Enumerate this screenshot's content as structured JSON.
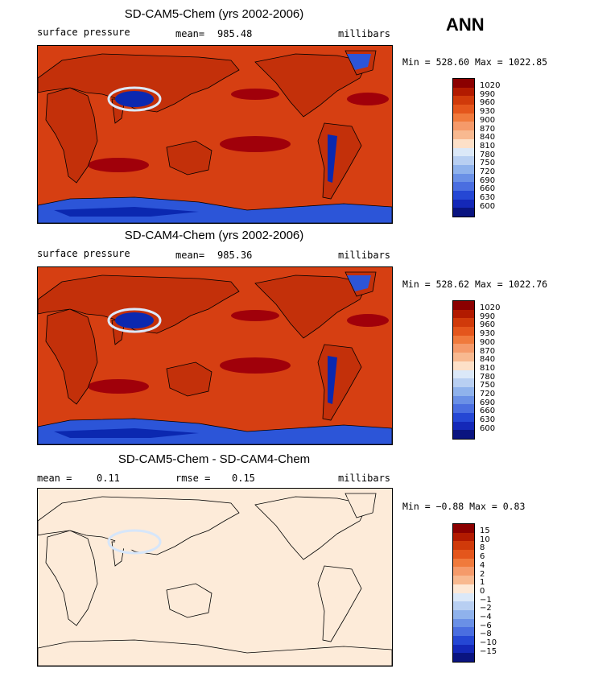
{
  "season": "ANN",
  "panels": [
    {
      "title": "SD-CAM5-Chem (yrs 2002-2006)",
      "left_label": "surface pressure",
      "mean_label": "mean=",
      "mean_value": "985.48",
      "units": "millibars",
      "min_label": "Min =",
      "min_value": "528.60",
      "max_label": "Max =",
      "max_value": "1022.85",
      "colorbar_labels": [
        "1020",
        "990",
        "960",
        "930",
        "900",
        "870",
        "840",
        "810",
        "780",
        "750",
        "720",
        "690",
        "660",
        "630",
        "600"
      ],
      "colorbar_colors": [
        "#8b0000",
        "#b21a00",
        "#d03a0a",
        "#e4561c",
        "#f07a3c",
        "#f59a6a",
        "#f8b990",
        "#fde0c8",
        "#dbe8f8",
        "#b8cff2",
        "#8fb2ec",
        "#6a90e6",
        "#4a6ee0",
        "#2547d4",
        "#1428b8",
        "#0a1480"
      ],
      "map": {
        "ocean": "#d63f12",
        "land": "#c3300a",
        "hot": "#a0000a",
        "plateau": "#0b28b0",
        "polar": "#2c55d8",
        "snow": "#dce8fb"
      }
    },
    {
      "title": "SD-CAM4-Chem (yrs 2002-2006)",
      "left_label": "surface pressure",
      "mean_label": "mean=",
      "mean_value": "985.36",
      "units": "millibars",
      "min_label": "Min =",
      "min_value": "528.62",
      "max_label": "Max =",
      "max_value": "1022.76",
      "colorbar_labels": [
        "1020",
        "990",
        "960",
        "930",
        "900",
        "870",
        "840",
        "810",
        "780",
        "750",
        "720",
        "690",
        "660",
        "630",
        "600"
      ],
      "colorbar_colors": [
        "#8b0000",
        "#b21a00",
        "#d03a0a",
        "#e4561c",
        "#f07a3c",
        "#f59a6a",
        "#f8b990",
        "#fde0c8",
        "#dbe8f8",
        "#b8cff2",
        "#8fb2ec",
        "#6a90e6",
        "#4a6ee0",
        "#2547d4",
        "#1428b8",
        "#0a1480"
      ],
      "map": {
        "ocean": "#d63f12",
        "land": "#c3300a",
        "hot": "#a0000a",
        "plateau": "#0b28b0",
        "polar": "#2c55d8",
        "snow": "#dce8fb"
      }
    },
    {
      "title": "SD-CAM5-Chem - SD-CAM4-Chem",
      "mean_label": "mean =",
      "mean_value": "0.11",
      "rmse_label": "rmse =",
      "rmse_value": "0.15",
      "units": "millibars",
      "min_label": "Min =",
      "min_value": "−0.88",
      "max_label": "Max =",
      "max_value": "0.83",
      "colorbar_labels": [
        "15",
        "10",
        "8",
        "6",
        "4",
        "2",
        "1",
        "0",
        "−1",
        "−2",
        "−4",
        "−6",
        "−8",
        "−10",
        "−15"
      ],
      "colorbar_colors": [
        "#8b0000",
        "#b21a00",
        "#d03a0a",
        "#e4561c",
        "#f07a3c",
        "#f59a6a",
        "#f8b990",
        "#fde8d6",
        "#dbe8f8",
        "#b8cff2",
        "#8fb2ec",
        "#6a90e6",
        "#4a6ee0",
        "#2547d4",
        "#1428b8",
        "#0a1480"
      ],
      "map": {
        "ocean": "#fdebd9",
        "land": "#fdebd9",
        "hot": "#fdebd9",
        "plateau": "#fdebd9",
        "polar": "#fdebd9",
        "snow": "#d6e6fa"
      }
    }
  ]
}
